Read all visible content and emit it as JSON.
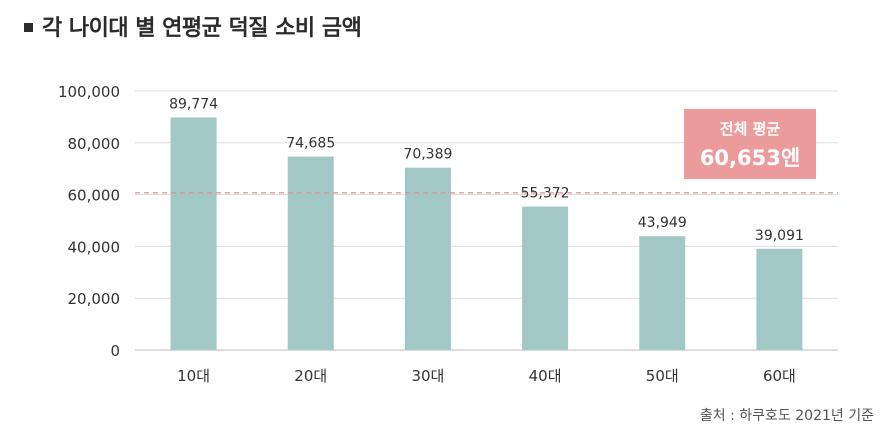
{
  "title": "각 나이대 별 연평균 덕질 소비 금액",
  "source": "출처 : 하쿠호도 2021년 기준",
  "average_box": {
    "label": "전체 평균",
    "value": "60,653엔"
  },
  "colors": {
    "bar": "#a2c8c5",
    "avg_line": "#e58b8b",
    "avg_box": "#eb9b9b",
    "grid": "#dddddd",
    "axis": "#bbbbbb"
  },
  "chart_data": {
    "type": "bar",
    "categories": [
      "10대",
      "20대",
      "30대",
      "40대",
      "50대",
      "60대"
    ],
    "values": [
      89774,
      74685,
      70389,
      55372,
      43949,
      39091
    ],
    "value_labels": [
      "89,774",
      "74,685",
      "70,389",
      "55,372",
      "43,949",
      "39,091"
    ],
    "average": 60653,
    "ylim": [
      0,
      100000
    ],
    "yticks": [
      0,
      20000,
      40000,
      60000,
      80000,
      100000
    ],
    "ytick_labels": [
      "0",
      "20,000",
      "40,000",
      "60,000",
      "80,000",
      "100,000"
    ],
    "grid": true
  }
}
